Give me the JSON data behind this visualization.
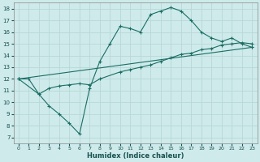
{
  "xlabel": "Humidex (Indice chaleur)",
  "bg_color": "#ceeaea",
  "grid_color": "#b8d8d8",
  "line_color": "#1a6e64",
  "xlim": [
    -0.5,
    23.5
  ],
  "ylim": [
    6.5,
    18.5
  ],
  "xticks": [
    0,
    1,
    2,
    3,
    4,
    5,
    6,
    7,
    8,
    9,
    10,
    11,
    12,
    13,
    14,
    15,
    16,
    17,
    18,
    19,
    20,
    21,
    22,
    23
  ],
  "yticks": [
    7,
    8,
    9,
    10,
    11,
    12,
    13,
    14,
    15,
    16,
    17,
    18
  ],
  "line1_x": [
    0,
    1,
    2,
    3,
    4,
    5,
    6,
    7,
    8,
    9,
    10,
    11,
    12,
    13,
    14,
    15,
    16,
    17,
    18,
    19,
    20,
    21,
    22,
    23
  ],
  "line1_y": [
    12,
    12,
    10.7,
    9.7,
    9.0,
    8.2,
    7.3,
    11.2,
    13.5,
    15.0,
    16.5,
    16.3,
    16.0,
    17.5,
    17.8,
    18.1,
    17.8,
    17.0,
    16.0,
    15.5,
    15.2,
    15.5,
    15.0,
    14.7
  ],
  "line2_x": [
    0,
    2,
    3,
    4,
    5,
    6,
    7,
    8,
    10,
    11,
    12,
    13,
    14,
    15,
    16,
    17,
    18,
    19,
    20,
    21,
    22,
    23
  ],
  "line2_y": [
    12,
    10.7,
    11.2,
    11.4,
    11.5,
    11.6,
    11.5,
    12.0,
    12.6,
    12.8,
    13.0,
    13.2,
    13.5,
    13.8,
    14.1,
    14.2,
    14.5,
    14.6,
    14.9,
    15.0,
    15.1,
    15.0
  ],
  "line3_x": [
    0,
    23
  ],
  "line3_y": [
    12,
    14.7
  ]
}
